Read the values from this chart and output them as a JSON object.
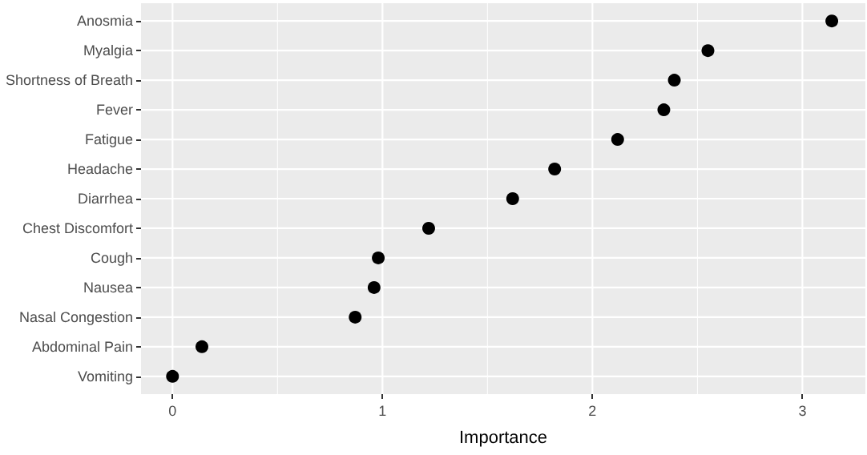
{
  "chart_data": {
    "type": "scatter",
    "xlabel": "Importance",
    "categories": [
      "Anosmia",
      "Myalgia",
      "Shortness of Breath",
      "Fever",
      "Fatigue",
      "Headache",
      "Diarrhea",
      "Chest Discomfort",
      "Cough",
      "Nausea",
      "Nasal Congestion",
      "Abdominal Pain",
      "Vomiting"
    ],
    "orientation": "horizontal",
    "series": [
      {
        "color": "#000000",
        "values": [
          3.14,
          2.55,
          2.39,
          2.34,
          2.12,
          1.82,
          1.62,
          1.22,
          0.98,
          0.96,
          0.87,
          0.14,
          0
        ]
      }
    ],
    "xlim": [
      -0.15,
      3.3
    ],
    "xticks": [
      0,
      1,
      2,
      3
    ],
    "grid": true,
    "marker": "circle"
  }
}
